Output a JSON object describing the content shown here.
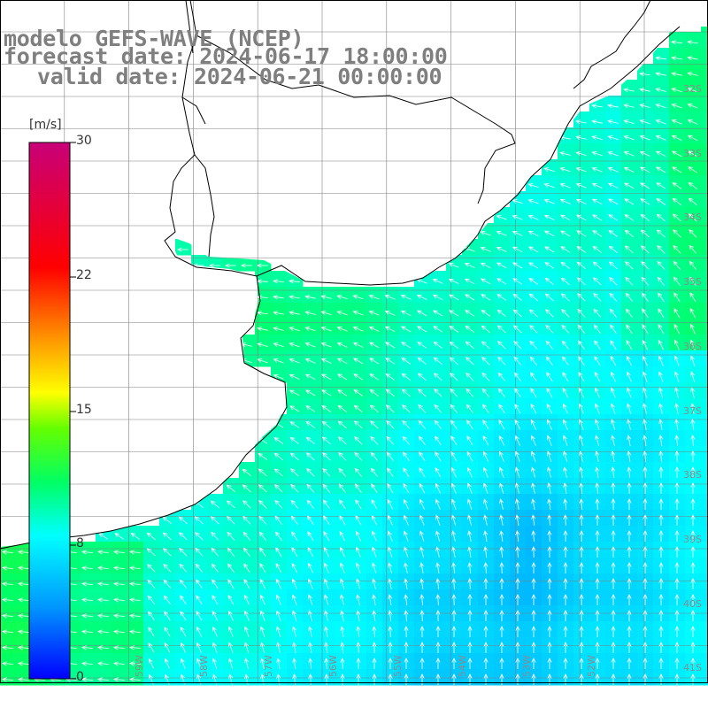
{
  "titles": {
    "model": "modelo GEFS-WAVE (NCEP)",
    "forecast": "forecast date: 2024-06-17 18:00:00",
    "valid": "valid date: 2024-06-21 00:00:00"
  },
  "colorbar": {
    "unit": "[m/s]",
    "ticks": [
      "30",
      "22",
      "15",
      "8",
      "0"
    ],
    "stops": [
      {
        "value": 0,
        "color": "#0000ff"
      },
      {
        "value": 4,
        "color": "#0096ff"
      },
      {
        "value": 8,
        "color": "#00ffff"
      },
      {
        "value": 11,
        "color": "#00ff64"
      },
      {
        "value": 14,
        "color": "#64ff00"
      },
      {
        "value": 16,
        "color": "#ffff00"
      },
      {
        "value": 19,
        "color": "#ff9600"
      },
      {
        "value": 23,
        "color": "#ff0000"
      },
      {
        "value": 30,
        "color": "#c80078"
      }
    ]
  },
  "lat_labels": [
    "32S",
    "33S",
    "34S",
    "35S",
    "36S",
    "37S",
    "38S",
    "39S",
    "40S",
    "41S"
  ],
  "lon_labels": [
    "61W",
    "60W",
    "59W",
    "58W",
    "57W",
    "56W",
    "55W",
    "54W",
    "53W",
    "52W"
  ],
  "map_colors": {
    "land": "#ffffff",
    "coast": "#000000",
    "grid": "#808080",
    "arrow": "#ffffff",
    "label": "#8c8c8c"
  },
  "wind_direction": "from east, turning to from south in the southeast"
}
